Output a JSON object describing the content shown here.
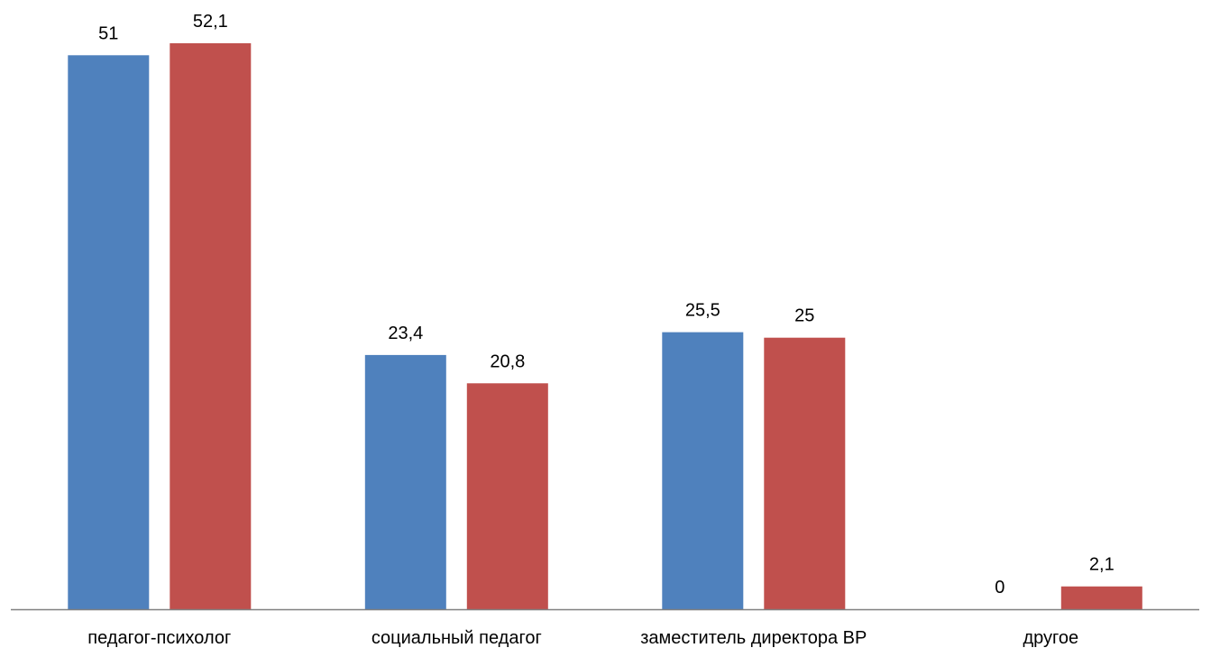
{
  "chart_data": {
    "type": "bar",
    "title": "",
    "xlabel": "",
    "ylabel": "",
    "ylim": [
      0,
      52.1
    ],
    "grid": false,
    "legend": "none",
    "categories": [
      "педагог-психолог",
      "социальный педагог",
      "заместитель директора ВР",
      "другое"
    ],
    "series": [
      {
        "values": [
          51,
          23.4,
          25.5,
          0
        ],
        "labels": [
          "51",
          "23,4",
          "25,5",
          "0"
        ],
        "color": "#4F81BD"
      },
      {
        "values": [
          52.1,
          20.8,
          25,
          2.1
        ],
        "labels": [
          "52,1",
          "20,8",
          "25",
          "2,1"
        ],
        "color": "#C0504D"
      }
    ],
    "axis_color": "#808080"
  }
}
